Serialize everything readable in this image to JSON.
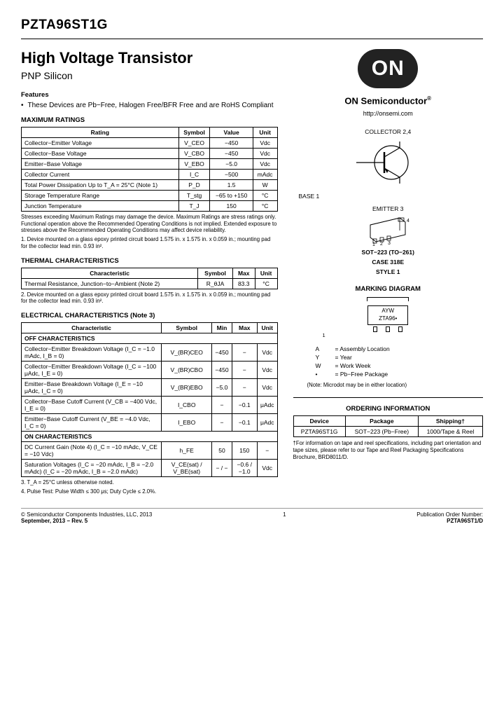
{
  "part_number": "PZTA96ST1G",
  "title": "High Voltage Transistor",
  "subtitle": "PNP Silicon",
  "features_header": "Features",
  "feature_bullet": "These Devices are Pb−Free, Halogen Free/BFR Free and are RoHS Compliant",
  "brand_logo_text": "ON",
  "brand_name": "ON Semiconductor",
  "brand_url": "http://onsemi.com",
  "max_ratings": {
    "header": "MAXIMUM RATINGS",
    "cols": [
      "Rating",
      "Symbol",
      "Value",
      "Unit"
    ],
    "rows": [
      [
        "Collector−Emitter Voltage",
        "V_CEO",
        "−450",
        "Vdc"
      ],
      [
        "Collector−Base Voltage",
        "V_CBO",
        "−450",
        "Vdc"
      ],
      [
        "Emitter−Base Voltage",
        "V_EBO",
        "−5.0",
        "Vdc"
      ],
      [
        "Collector Current",
        "I_C",
        "−500",
        "mAdc"
      ],
      [
        "Total Power Dissipation Up to  T_A = 25°C (Note 1)",
        "P_D",
        "1.5",
        "W"
      ],
      [
        "Storage Temperature Range",
        "T_stg",
        "−65 to +150",
        "°C"
      ],
      [
        "Junction Temperature",
        "T_J",
        "150",
        "°C"
      ]
    ],
    "note_stress": "Stresses exceeding Maximum Ratings may damage the device. Maximum Ratings are stress ratings only. Functional operation above the Recommended Operating Conditions is not implied. Extended exposure to stresses above the Recommended Operating Conditions may affect device reliability.",
    "note1": "1. Device mounted on a glass epoxy printed circuit board 1.575 in. x 1.575 in. x 0.059 in.; mounting pad for the collector lead min. 0.93 in²."
  },
  "thermal": {
    "header": "THERMAL CHARACTERISTICS",
    "cols": [
      "Characteristic",
      "Symbol",
      "Max",
      "Unit"
    ],
    "rows": [
      [
        "Thermal Resistance, Junction−to−Ambient (Note 2)",
        "R_θJA",
        "83.3",
        "°C"
      ]
    ],
    "note2": "2. Device mounted on a glass epoxy printed circuit board 1.575 in. x 1.575 in. x 0.059 in.; mounting pad for the collector lead min. 0.93 in²."
  },
  "electrical": {
    "header": "ELECTRICAL CHARACTERISTICS (Note 3)",
    "cols": [
      "Characteristic",
      "Symbol",
      "Min",
      "Max",
      "Unit"
    ],
    "off_header": "OFF CHARACTERISTICS",
    "off_rows": [
      [
        "Collector−Emitter Breakdown Voltage  (I_C = −1.0 mAdc, I_B = 0)",
        "V_(BR)CEO",
        "−450",
        "−",
        "Vdc"
      ],
      [
        "Collector−Emitter Breakdown Voltage  (I_C = −100 μAdc, I_E = 0)",
        "V_(BR)CBO",
        "−450",
        "−",
        "Vdc"
      ],
      [
        "Emitter−Base Breakdown Voltage  (I_E = −10 μAdc, I_C = 0)",
        "V_(BR)EBO",
        "−5.0",
        "−",
        "Vdc"
      ],
      [
        "Collector−Base Cutoff Current  (V_CB = −400 Vdc, I_E = 0)",
        "I_CBO",
        "−",
        "−0.1",
        "μAdc"
      ],
      [
        "Emitter−Base Cutoff Current  (V_BE = −4.0 Vdc, I_C = 0)",
        "I_EBO",
        "−",
        "−0.1",
        "μAdc"
      ]
    ],
    "on_header": "ON CHARACTERISTICS",
    "on_rows": [
      [
        "DC Current Gain (Note 4)  (I_C = −10 mAdc, V_CE = −10 Vdc)",
        "h_FE",
        "50",
        "150",
        "−"
      ],
      [
        "Saturation Voltages  (I_C = −20 mAdc, I_B = −2.0 mAdc)  (I_C = −20 mAdc, I_B = −2.0 mAdc)",
        "V_CE(sat) / V_BE(sat)",
        "− / −",
        "−0.6 / −1.0",
        "Vdc"
      ]
    ],
    "note3": "3. T_A = 25°C unless otherwise noted.",
    "note4": "4. Pulse Test: Pulse Width ≤ 300 μs; Duty Cycle ≤ 2.0%."
  },
  "schematic": {
    "collector": "COLLECTOR 2,4",
    "base": "BASE 1",
    "emitter": "EMITTER 3"
  },
  "package": {
    "line1": "SOT−223 (TO−261)",
    "line2": "CASE 318E",
    "line3": "STYLE 1"
  },
  "marking": {
    "header": "MARKING DIAGRAM",
    "line1": "AYW",
    "line2": "ZTA96•",
    "pin1": "1",
    "legend": [
      [
        "A",
        "= Assembly Location"
      ],
      [
        "Y",
        "= Year"
      ],
      [
        "W",
        "= Work Week"
      ],
      [
        "•",
        "= Pb−Free Package"
      ]
    ],
    "note": "(Note: Microdot may be in either location)"
  },
  "ordering": {
    "header": "ORDERING INFORMATION",
    "cols": [
      "Device",
      "Package",
      "Shipping†"
    ],
    "rows": [
      [
        "PZTA96ST1G",
        "SOT−223 (Pb−Free)",
        "1000/Tape & Reel"
      ]
    ],
    "note": "†For information on tape and reel specifications, including part orientation and tape sizes, please refer to our Tape and Reel Packaging Specifications Brochure, BRD8011/D."
  },
  "footer": {
    "left1": "© Semiconductor Components Industries, LLC, 2013",
    "left2": "September, 2013 − Rev. 5",
    "page": "1",
    "right1": "Publication Order Number:",
    "right2": "PZTA96ST1/D"
  },
  "colors": {
    "text": "#000000",
    "logo_bg": "#222222",
    "logo_fg": "#ffffff",
    "border": "#000000"
  }
}
